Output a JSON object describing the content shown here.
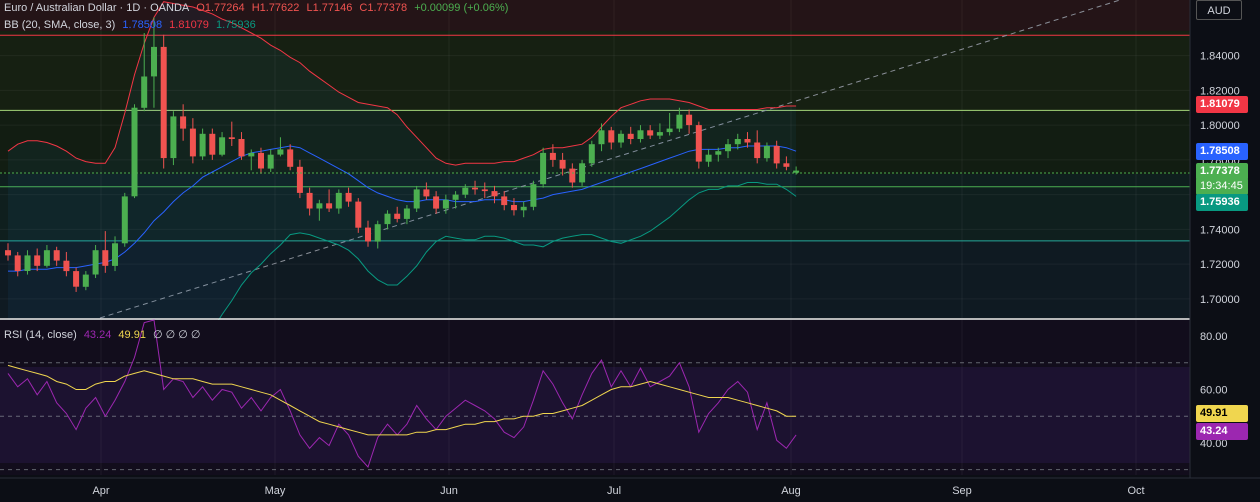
{
  "header": {
    "symbol": "Euro / Australian Dollar · 1D · OANDA",
    "open": "O1.77264",
    "high": "H1.77622",
    "low": "L1.77146",
    "close": "C1.77378",
    "change": "+0.00099 (+0.06%)"
  },
  "bb_legend": {
    "name": "BB (20, SMA, close, 3)",
    "basis": "1.78508",
    "upper": "1.81079",
    "lower": "1.75936"
  },
  "rsi_legend": {
    "name": "RSI (14, close)",
    "rsi": "43.24",
    "sma": "49.91",
    "extra": "∅ ∅ ∅ ∅"
  },
  "currency": "AUD",
  "price_tags": {
    "upper": "1.81079",
    "basis": "1.78508",
    "last": "1.77378",
    "countdown": "19:34:45",
    "lower": "1.75936"
  },
  "rsi_tags": {
    "sma": "49.91",
    "rsi": "43.24"
  },
  "colors": {
    "up": "#4caf50",
    "down": "#f05350",
    "bb_basis": "#2962ff",
    "bb_upper": "#f23645",
    "bb_lower": "#089981",
    "rsi": "#9c27b0",
    "rsi_sma": "#f0d64f"
  },
  "chart_data": {
    "type": "candlestick",
    "price_axis": {
      "ticks": [
        "1.84000",
        "1.82000",
        "1.80000",
        "1.78000",
        "1.76000",
        "1.74000",
        "1.72000",
        "1.70000"
      ],
      "range": [
        1.689,
        1.872
      ]
    },
    "rsi_axis": {
      "ticks": [
        "80.00",
        "60.00",
        "40.00"
      ],
      "range": [
        28,
        86
      ],
      "levels": [
        70,
        50,
        30
      ]
    },
    "time_axis": [
      "Apr",
      "May",
      "Jun",
      "Jul",
      "Aug",
      "Sep",
      "Oct"
    ],
    "horizontal_levels": [
      1.8517,
      1.8085,
      1.7645,
      1.7334
    ],
    "candles": [
      [
        1.728,
        1.732,
        1.722,
        1.725
      ],
      [
        1.725,
        1.727,
        1.713,
        1.716
      ],
      [
        1.716,
        1.728,
        1.714,
        1.725
      ],
      [
        1.725,
        1.729,
        1.716,
        1.719
      ],
      [
        1.719,
        1.731,
        1.718,
        1.728
      ],
      [
        1.728,
        1.73,
        1.719,
        1.722
      ],
      [
        1.722,
        1.727,
        1.713,
        1.716
      ],
      [
        1.716,
        1.718,
        1.704,
        1.707
      ],
      [
        1.707,
        1.716,
        1.705,
        1.714
      ],
      [
        1.714,
        1.731,
        1.712,
        1.728
      ],
      [
        1.728,
        1.739,
        1.715,
        1.719
      ],
      [
        1.719,
        1.736,
        1.716,
        1.732
      ],
      [
        1.732,
        1.761,
        1.73,
        1.759
      ],
      [
        1.759,
        1.812,
        1.758,
        1.81
      ],
      [
        1.81,
        1.853,
        1.808,
        1.828
      ],
      [
        1.828,
        1.862,
        1.81,
        1.845
      ],
      [
        1.845,
        1.852,
        1.775,
        1.781
      ],
      [
        1.781,
        1.808,
        1.777,
        1.805
      ],
      [
        1.805,
        1.812,
        1.791,
        1.798
      ],
      [
        1.798,
        1.804,
        1.778,
        1.782
      ],
      [
        1.782,
        1.798,
        1.78,
        1.795
      ],
      [
        1.795,
        1.798,
        1.78,
        1.783
      ],
      [
        1.783,
        1.796,
        1.782,
        1.793
      ],
      [
        1.793,
        1.802,
        1.788,
        1.792
      ],
      [
        1.792,
        1.796,
        1.78,
        1.782
      ],
      [
        1.782,
        1.786,
        1.774,
        1.784
      ],
      [
        1.784,
        1.787,
        1.772,
        1.775
      ],
      [
        1.775,
        1.786,
        1.773,
        1.783
      ],
      [
        1.783,
        1.793,
        1.782,
        1.786
      ],
      [
        1.786,
        1.789,
        1.774,
        1.776
      ],
      [
        1.776,
        1.78,
        1.758,
        1.761
      ],
      [
        1.761,
        1.764,
        1.748,
        1.752
      ],
      [
        1.752,
        1.757,
        1.745,
        1.755
      ],
      [
        1.755,
        1.763,
        1.75,
        1.752
      ],
      [
        1.752,
        1.763,
        1.749,
        1.761
      ],
      [
        1.761,
        1.764,
        1.753,
        1.756
      ],
      [
        1.756,
        1.758,
        1.738,
        1.741
      ],
      [
        1.741,
        1.745,
        1.73,
        1.733
      ],
      [
        1.733,
        1.745,
        1.729,
        1.743
      ],
      [
        1.743,
        1.751,
        1.74,
        1.749
      ],
      [
        1.749,
        1.753,
        1.744,
        1.746
      ],
      [
        1.746,
        1.754,
        1.743,
        1.752
      ],
      [
        1.752,
        1.765,
        1.75,
        1.763
      ],
      [
        1.763,
        1.767,
        1.757,
        1.759
      ],
      [
        1.759,
        1.762,
        1.749,
        1.752
      ],
      [
        1.752,
        1.76,
        1.749,
        1.757
      ],
      [
        1.757,
        1.762,
        1.752,
        1.76
      ],
      [
        1.76,
        1.766,
        1.758,
        1.764
      ],
      [
        1.764,
        1.768,
        1.76,
        1.763
      ],
      [
        1.763,
        1.767,
        1.758,
        1.762
      ],
      [
        1.762,
        1.765,
        1.755,
        1.759
      ],
      [
        1.759,
        1.762,
        1.751,
        1.754
      ],
      [
        1.754,
        1.758,
        1.748,
        1.751
      ],
      [
        1.751,
        1.756,
        1.747,
        1.753
      ],
      [
        1.753,
        1.768,
        1.751,
        1.766
      ],
      [
        1.766,
        1.787,
        1.764,
        1.784
      ],
      [
        1.784,
        1.789,
        1.776,
        1.78
      ],
      [
        1.78,
        1.784,
        1.771,
        1.775
      ],
      [
        1.775,
        1.778,
        1.764,
        1.767
      ],
      [
        1.767,
        1.78,
        1.765,
        1.778
      ],
      [
        1.778,
        1.791,
        1.776,
        1.789
      ],
      [
        1.789,
        1.801,
        1.785,
        1.797
      ],
      [
        1.797,
        1.799,
        1.786,
        1.79
      ],
      [
        1.79,
        1.797,
        1.787,
        1.795
      ],
      [
        1.795,
        1.799,
        1.789,
        1.792
      ],
      [
        1.792,
        1.8,
        1.79,
        1.797
      ],
      [
        1.797,
        1.8,
        1.792,
        1.794
      ],
      [
        1.794,
        1.801,
        1.792,
        1.796
      ],
      [
        1.796,
        1.807,
        1.794,
        1.798
      ],
      [
        1.798,
        1.81,
        1.796,
        1.806
      ],
      [
        1.806,
        1.809,
        1.795,
        1.8
      ],
      [
        1.8,
        1.802,
        1.775,
        1.779
      ],
      [
        1.779,
        1.786,
        1.776,
        1.783
      ],
      [
        1.783,
        1.787,
        1.779,
        1.785
      ],
      [
        1.785,
        1.792,
        1.781,
        1.789
      ],
      [
        1.789,
        1.795,
        1.786,
        1.792
      ],
      [
        1.792,
        1.796,
        1.787,
        1.79
      ],
      [
        1.79,
        1.797,
        1.778,
        1.781
      ],
      [
        1.781,
        1.79,
        1.779,
        1.788
      ],
      [
        1.788,
        1.791,
        1.775,
        1.778
      ],
      [
        1.778,
        1.782,
        1.774,
        1.776
      ],
      [
        1.7726,
        1.7762,
        1.7715,
        1.7738
      ]
    ],
    "bb_basis": [
      1.716,
      1.716,
      1.717,
      1.717,
      1.717,
      1.718,
      1.718,
      1.718,
      1.719,
      1.72,
      1.721,
      1.723,
      1.727,
      1.732,
      1.738,
      1.745,
      1.75,
      1.756,
      1.761,
      1.765,
      1.77,
      1.773,
      1.776,
      1.779,
      1.782,
      1.784,
      1.785,
      1.786,
      1.787,
      1.788,
      1.787,
      1.784,
      1.781,
      1.778,
      1.775,
      1.772,
      1.768,
      1.764,
      1.761,
      1.759,
      1.757,
      1.756,
      1.756,
      1.757,
      1.757,
      1.757,
      1.756,
      1.756,
      1.756,
      1.757,
      1.757,
      1.757,
      1.756,
      1.756,
      1.757,
      1.758,
      1.76,
      1.761,
      1.762,
      1.763,
      1.765,
      1.767,
      1.769,
      1.771,
      1.773,
      1.775,
      1.777,
      1.779,
      1.781,
      1.783,
      1.785,
      1.786,
      1.786,
      1.786,
      1.787,
      1.787,
      1.788,
      1.788,
      1.788,
      1.788,
      1.787,
      1.785
    ],
    "bb_upper": [
      1.785,
      1.789,
      1.791,
      1.791,
      1.79,
      1.788,
      1.785,
      1.781,
      1.779,
      1.778,
      1.778,
      1.787,
      1.807,
      1.829,
      1.847,
      1.862,
      1.871,
      1.87,
      1.869,
      1.868,
      1.866,
      1.864,
      1.861,
      1.859,
      1.856,
      1.853,
      1.85,
      1.846,
      1.843,
      1.839,
      1.836,
      1.831,
      1.827,
      1.823,
      1.819,
      1.816,
      1.813,
      1.812,
      1.811,
      1.81,
      1.806,
      1.799,
      1.793,
      1.787,
      1.781,
      1.778,
      1.777,
      1.778,
      1.778,
      1.778,
      1.778,
      1.779,
      1.779,
      1.781,
      1.783,
      1.786,
      1.787,
      1.787,
      1.788,
      1.789,
      1.793,
      1.799,
      1.805,
      1.81,
      1.812,
      1.814,
      1.815,
      1.815,
      1.815,
      1.814,
      1.813,
      1.811,
      1.809,
      1.809,
      1.809,
      1.809,
      1.809,
      1.809,
      1.81,
      1.81,
      1.811,
      1.811
    ],
    "bb_lower": [
      1.647,
      1.643,
      1.643,
      1.643,
      1.644,
      1.648,
      1.651,
      1.655,
      1.659,
      1.662,
      1.664,
      1.659,
      1.647,
      1.635,
      1.629,
      1.628,
      1.629,
      1.642,
      1.653,
      1.662,
      1.674,
      1.682,
      1.691,
      1.699,
      1.708,
      1.715,
      1.72,
      1.726,
      1.731,
      1.737,
      1.738,
      1.737,
      1.735,
      1.733,
      1.731,
      1.728,
      1.723,
      1.716,
      1.711,
      1.708,
      1.708,
      1.713,
      1.719,
      1.727,
      1.733,
      1.736,
      1.735,
      1.734,
      1.734,
      1.736,
      1.736,
      1.735,
      1.733,
      1.731,
      1.731,
      1.73,
      1.733,
      1.735,
      1.736,
      1.737,
      1.737,
      1.735,
      1.733,
      1.732,
      1.734,
      1.736,
      1.739,
      1.743,
      1.747,
      1.752,
      1.757,
      1.761,
      1.763,
      1.763,
      1.765,
      1.765,
      1.767,
      1.767,
      1.766,
      1.766,
      1.763,
      1.759
    ],
    "rsi": [
      66,
      61,
      64,
      58,
      63,
      55,
      51,
      45,
      53,
      57,
      50,
      56,
      63,
      72,
      85,
      86,
      60,
      64,
      63,
      57,
      61,
      56,
      60,
      59,
      53,
      57,
      52,
      57,
      60,
      52,
      43,
      38,
      42,
      39,
      47,
      43,
      35,
      31,
      42,
      47,
      43,
      47,
      54,
      49,
      45,
      50,
      53,
      56,
      54,
      52,
      49,
      44,
      42,
      46,
      56,
      67,
      62,
      55,
      49,
      58,
      66,
      71,
      61,
      67,
      61,
      68,
      61,
      63,
      65,
      70,
      61,
      44,
      51,
      55,
      60,
      63,
      59,
      45,
      55,
      41,
      38,
      43
    ],
    "rsi_sma": [
      69,
      68,
      67,
      66,
      65,
      63,
      62,
      60,
      60,
      62,
      63,
      63,
      65,
      66,
      67,
      66,
      65,
      64,
      64,
      64,
      63,
      62,
      62,
      62,
      61,
      60,
      59,
      58,
      56,
      54,
      52,
      50,
      48,
      47,
      46,
      45,
      44,
      43,
      43,
      43,
      43,
      43,
      44,
      44,
      45,
      45,
      46,
      47,
      47,
      48,
      48,
      49,
      49,
      50,
      50,
      51,
      51,
      52,
      53,
      54,
      56,
      58,
      60,
      61,
      61,
      62,
      63,
      62,
      61,
      60,
      59,
      58,
      57,
      57,
      57,
      56,
      55,
      54,
      53,
      52,
      50,
      50
    ]
  }
}
